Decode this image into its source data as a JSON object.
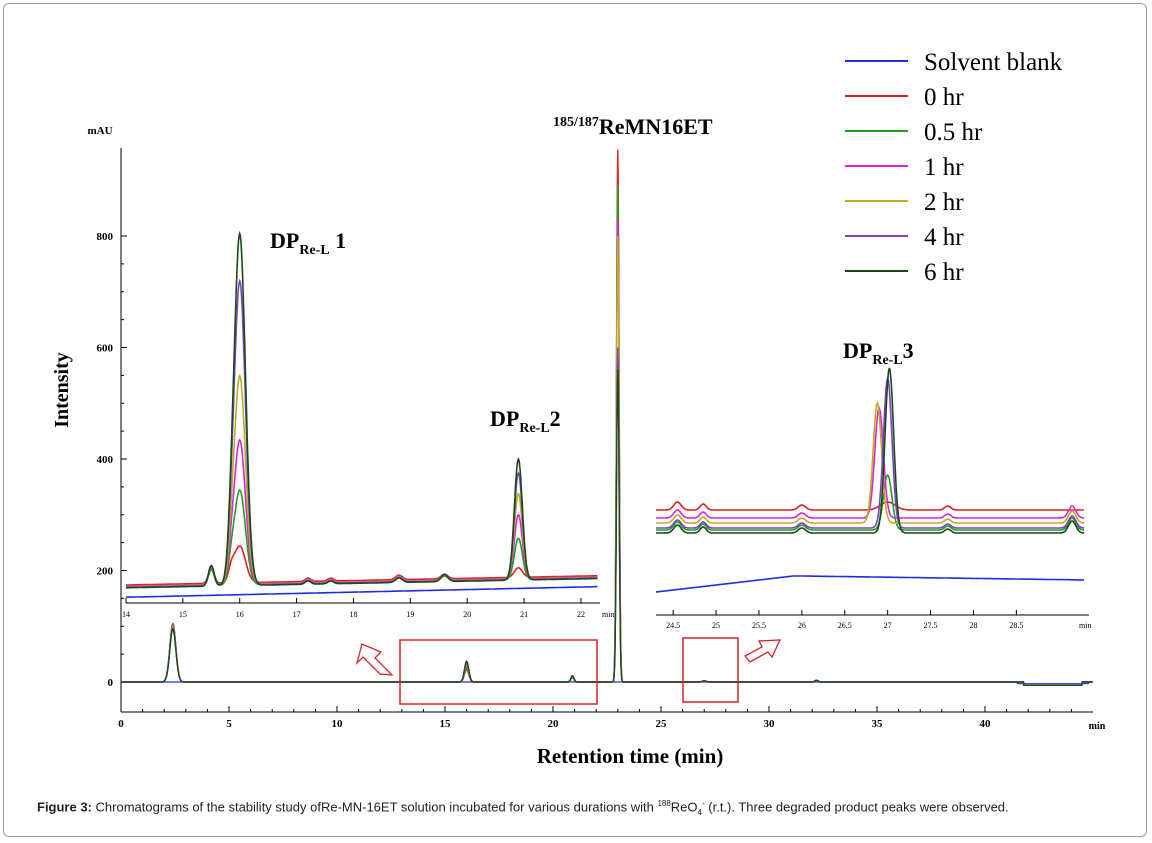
{
  "caption": {
    "label": "Figure 3:",
    "text_before": " Chromatograms of the stability study ofRe-MN-16ET solution incubated for various durations with ",
    "isotope": "188",
    "species": "ReO",
    "subscript": "4",
    "superscript": "-",
    "text_after": " (r.t.). Three degraded product peaks were observed."
  },
  "chart_data": {
    "type": "line",
    "xlabel": "Retention time (min)",
    "ylabel": "Intensity",
    "y_unit": "mAU",
    "x_unit": "min",
    "xlim": [
      0,
      45
    ],
    "ylim": [
      -45,
      960
    ],
    "x_ticks": [
      0,
      5,
      10,
      15,
      20,
      25,
      30,
      35,
      40
    ],
    "y_ticks": [
      0,
      200,
      400,
      600,
      800
    ],
    "colors": {
      "solvent_blank": "#1f2fe0",
      "0_hr": "#e02020",
      "0_5_hr": "#20a020",
      "1_hr": "#e020e0",
      "2_hr": "#b8b020",
      "4_hr": "#8040c0",
      "6_hr": "#1a4a1a"
    },
    "legend": {
      "placement": "top-right",
      "entries": [
        {
          "name": "Solvent blank",
          "color": "#1f2fe0"
        },
        {
          "name": "0 hr",
          "color": "#e02020"
        },
        {
          "name": "0.5 hr",
          "color": "#20a020"
        },
        {
          "name": "1 hr",
          "color": "#e020e0"
        },
        {
          "name": "2 hr",
          "color": "#b8b020"
        },
        {
          "name": "4 hr",
          "color": "#8040c0"
        },
        {
          "name": "6 hr",
          "color": "#1a4a1a"
        }
      ]
    },
    "main_peaks": [
      {
        "rt": 2.4,
        "height": 105
      },
      {
        "rt": 16.0,
        "height": 38
      },
      {
        "rt": 20.9,
        "height": 12
      },
      {
        "rt": 23.0,
        "heights": [
          0,
          955,
          890,
          830,
          800,
          600,
          560
        ]
      }
    ],
    "annotations": {
      "main_peak": {
        "sup": "185/187",
        "text": "ReMN16ET"
      },
      "dp1": {
        "text": "DP",
        "sub": "Re-L",
        "suffix": " 1"
      },
      "dp2": {
        "text": "DP",
        "sub": "Re-L",
        "suffix": "2"
      },
      "dp3": {
        "text": "DP",
        "sub": "Re-L",
        "suffix": "3"
      }
    },
    "inset_left": {
      "xlim": [
        14,
        22.3
      ],
      "x_ticks": [
        14,
        15,
        16,
        17,
        18,
        19,
        20,
        21,
        22
      ],
      "x_unit": "min",
      "peak_dp1": {
        "rt": 16.0,
        "heights": [
          0,
          240,
          340,
          430,
          545,
          715,
          800
        ]
      },
      "peak_dp2": {
        "rt": 20.9,
        "heights": [
          0,
          205,
          258,
          300,
          338,
          375,
          400
        ]
      },
      "baselines": [
        152,
        174,
        170,
        172,
        171,
        170,
        169
      ]
    },
    "inset_right": {
      "xlim": [
        24.3,
        29.3
      ],
      "x_ticks": [
        24.5,
        25,
        25.5,
        26,
        26.5,
        27,
        27.5,
        28,
        28.5
      ],
      "x_unit": "min"
    }
  }
}
